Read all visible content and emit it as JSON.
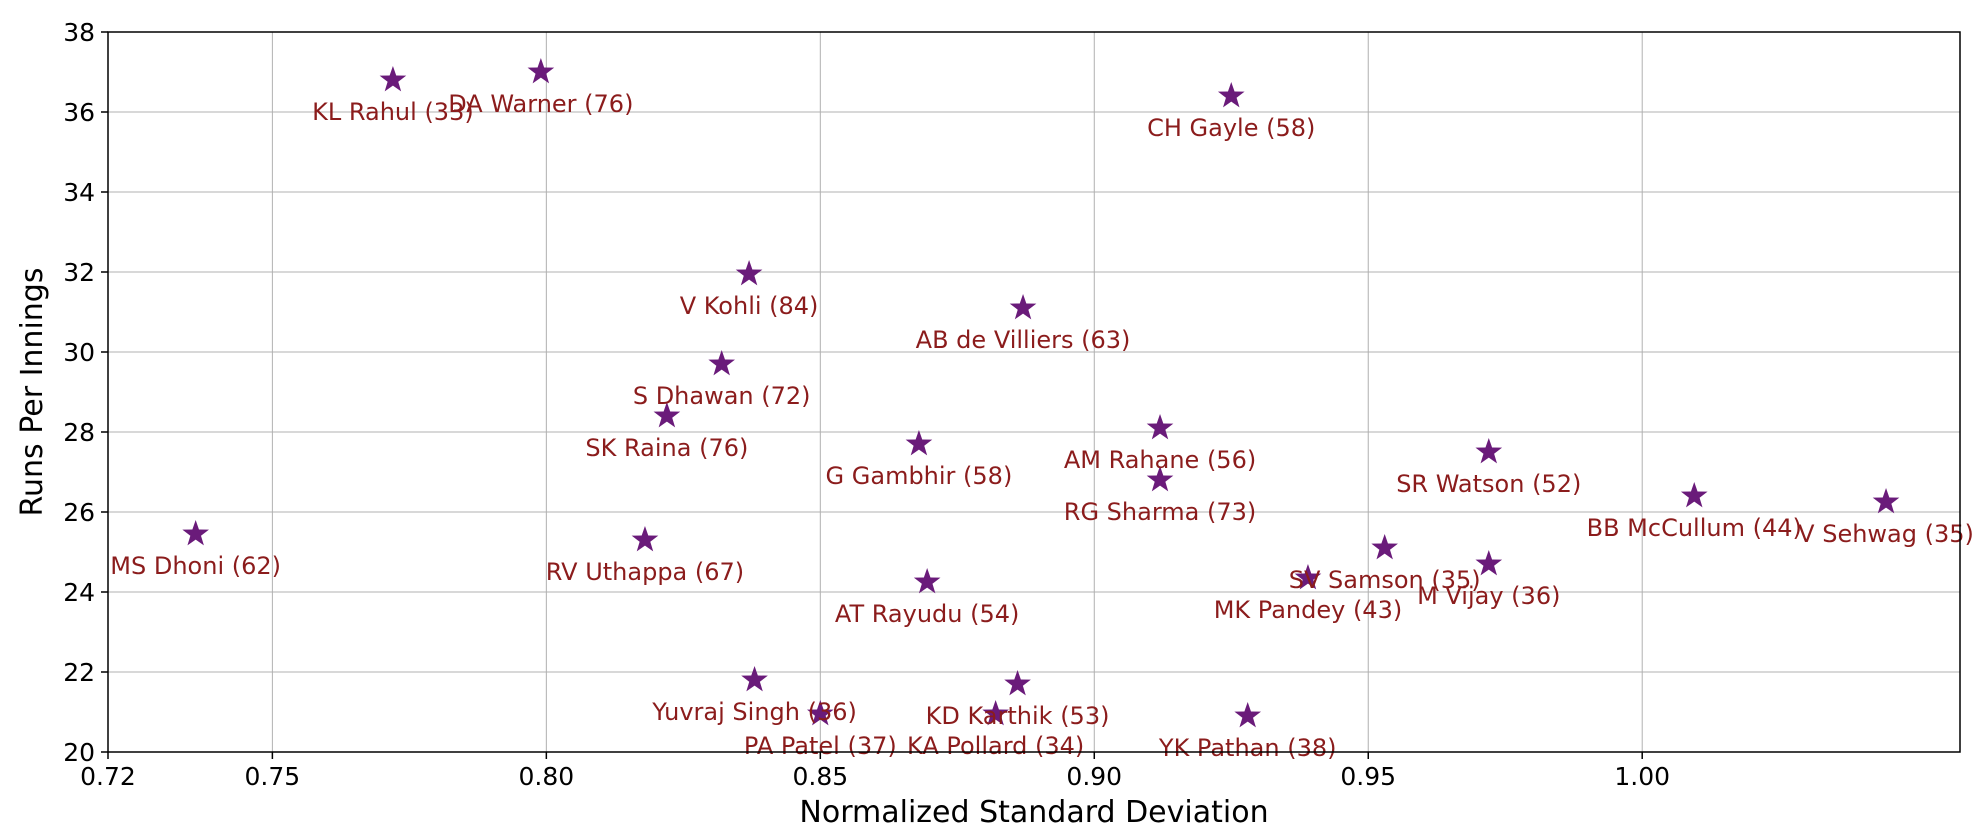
{
  "chart_data": {
    "type": "scatter",
    "title": "",
    "xlabel": "Normalized Standard Deviation",
    "ylabel": "Runs Per Innings",
    "xlim": [
      0.72,
      1.058
    ],
    "ylim": [
      20,
      38
    ],
    "x_ticks": [
      0.72,
      0.75,
      0.8,
      0.85,
      0.9,
      0.95,
      1.0
    ],
    "x_tick_labels": [
      "0.72",
      "0.75",
      "0.80",
      "0.85",
      "0.90",
      "0.95",
      "1.00"
    ],
    "y_ticks": [
      20,
      22,
      24,
      26,
      28,
      30,
      32,
      34,
      36,
      38
    ],
    "y_tick_labels": [
      "20",
      "22",
      "24",
      "26",
      "28",
      "30",
      "32",
      "34",
      "36",
      "38"
    ],
    "grid": true,
    "marker": "star",
    "marker_color": "#6a1b7a",
    "label_color": "#8b1c1c",
    "points": [
      {
        "label": "KL Rahul (33)",
        "x": 0.772,
        "y": 36.8
      },
      {
        "label": "DA Warner (76)",
        "x": 0.799,
        "y": 37.0
      },
      {
        "label": "CH Gayle (58)",
        "x": 0.925,
        "y": 36.4
      },
      {
        "label": "V Kohli (84)",
        "x": 0.837,
        "y": 31.95
      },
      {
        "label": "AB de Villiers (63)",
        "x": 0.887,
        "y": 31.1
      },
      {
        "label": "S Dhawan (72)",
        "x": 0.832,
        "y": 29.7
      },
      {
        "label": "SK Raina (76)",
        "x": 0.822,
        "y": 28.4
      },
      {
        "label": "G Gambhir (58)",
        "x": 0.868,
        "y": 27.7
      },
      {
        "label": "AM Rahane (56)",
        "x": 0.912,
        "y": 28.1
      },
      {
        "label": "RG Sharma (73)",
        "x": 0.912,
        "y": 26.8
      },
      {
        "label": "SR Watson (52)",
        "x": 0.972,
        "y": 27.5
      },
      {
        "label": "BB McCullum (44)",
        "x": 1.0095,
        "y": 26.4
      },
      {
        "label": "V Sehwag (35)",
        "x": 1.0445,
        "y": 26.25
      },
      {
        "label": "MS Dhoni (62)",
        "x": 0.736,
        "y": 25.45
      },
      {
        "label": "RV Uthappa (67)",
        "x": 0.818,
        "y": 25.3
      },
      {
        "label": "AT Rayudu (54)",
        "x": 0.8695,
        "y": 24.25
      },
      {
        "label": "SV Samson (35)",
        "x": 0.953,
        "y": 25.1
      },
      {
        "label": "M Vijay (36)",
        "x": 0.972,
        "y": 24.7
      },
      {
        "label": "MK Pandey (43)",
        "x": 0.939,
        "y": 24.35
      },
      {
        "label": "Yuvraj Singh (36)",
        "x": 0.838,
        "y": 21.8
      },
      {
        "label": "KD Karthik (53)",
        "x": 0.886,
        "y": 21.7
      },
      {
        "label": "PA Patel (37)",
        "x": 0.85,
        "y": 20.95
      },
      {
        "label": "KA Pollard (34)",
        "x": 0.882,
        "y": 20.95
      },
      {
        "label": "YK Pathan (38)",
        "x": 0.928,
        "y": 20.9
      }
    ]
  }
}
